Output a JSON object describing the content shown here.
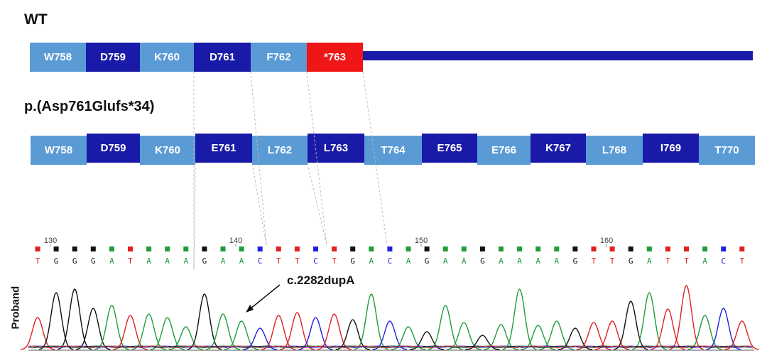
{
  "wt_title": "WT",
  "mutant_title": "p.(Asp761Glufs*34)",
  "wt_residues": [
    {
      "label": "W758",
      "shade": "light"
    },
    {
      "label": "D759",
      "shade": "dark"
    },
    {
      "label": "K760",
      "shade": "light"
    },
    {
      "label": "D761",
      "shade": "dark"
    },
    {
      "label": "F762",
      "shade": "light"
    },
    {
      "label": "*763",
      "shade": "red"
    }
  ],
  "mutant_residues": [
    {
      "label": "W758",
      "shade": "light"
    },
    {
      "label": "D759",
      "shade": "dark"
    },
    {
      "label": "K760",
      "shade": "light"
    },
    {
      "label": "E761",
      "shade": "dark"
    },
    {
      "label": "L762",
      "shade": "light"
    },
    {
      "label": "L763",
      "shade": "dark"
    },
    {
      "label": "T764",
      "shade": "light"
    },
    {
      "label": "E765",
      "shade": "dark"
    },
    {
      "label": "E766",
      "shade": "light"
    },
    {
      "label": "K767",
      "shade": "dark"
    },
    {
      "label": "L768",
      "shade": "light"
    },
    {
      "label": "I769",
      "shade": "dark"
    },
    {
      "label": "T770",
      "shade": "light"
    }
  ],
  "sequence": {
    "bases": [
      "T",
      "G",
      "G",
      "G",
      "A",
      "T",
      "A",
      "A",
      "A",
      "G",
      "A",
      "A",
      "C",
      "T",
      "T",
      "C",
      "T",
      "G",
      "A",
      "C",
      "A",
      "G",
      "A",
      "A",
      "G",
      "A",
      "A",
      "A",
      "A",
      "G",
      "T",
      "T",
      "G",
      "A",
      "T",
      "T",
      "A",
      "C",
      "T"
    ],
    "position_ticks": [
      {
        "label": "130",
        "base_index": 1
      },
      {
        "label": "140",
        "base_index": 11
      },
      {
        "label": "150",
        "base_index": 21
      },
      {
        "label": "160",
        "base_index": 31
      }
    ]
  },
  "mutation_label": "c.2282dupA",
  "track_label": "Proband",
  "colors": {
    "light": "#5b9bd5",
    "dark": "#1a1aa8",
    "red": "#f01616",
    "A": "#1f9c3c",
    "C": "#2020e0",
    "G": "#111111",
    "T": "#e02020"
  }
}
